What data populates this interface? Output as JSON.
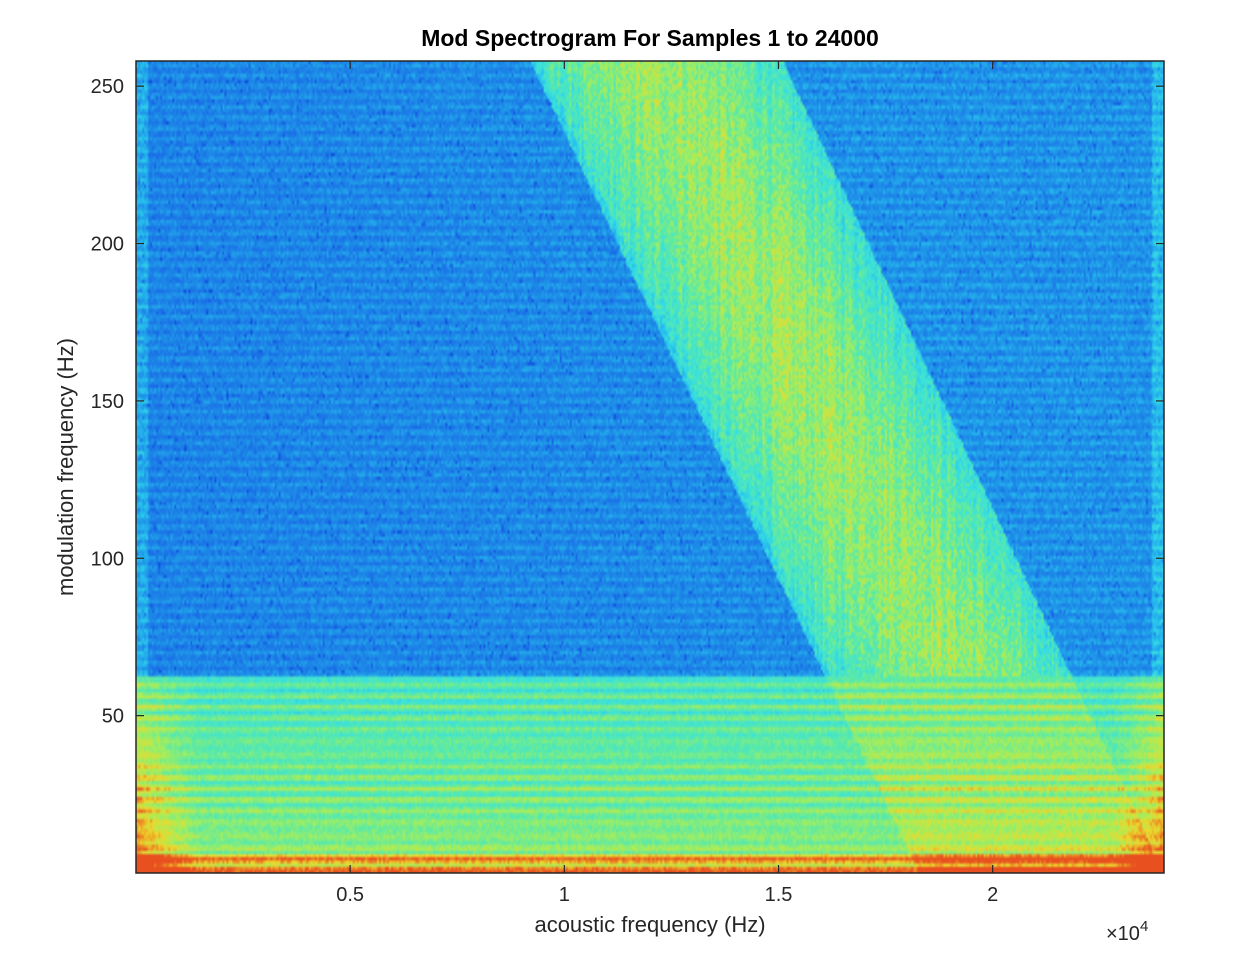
{
  "chart_data": {
    "type": "heatmap",
    "title": "Mod Spectrogram For Samples 1 to 24000",
    "xlabel": "acoustic frequency (Hz)",
    "ylabel": "modulation frequency (Hz)",
    "x_scale_multiplier": "×10",
    "x_scale_exponent": "4",
    "xlim": [
      0,
      24000
    ],
    "ylim": [
      0,
      258
    ],
    "xticks": [
      {
        "value": 5000,
        "label": "0.5"
      },
      {
        "value": 10000,
        "label": "1"
      },
      {
        "value": 15000,
        "label": "1.5"
      },
      {
        "value": 20000,
        "label": "2"
      }
    ],
    "yticks": [
      {
        "value": 50,
        "label": "50"
      },
      {
        "value": 100,
        "label": "100"
      },
      {
        "value": 150,
        "label": "150"
      },
      {
        "value": 200,
        "label": "200"
      },
      {
        "value": 250,
        "label": "250"
      }
    ],
    "colormap": "parula-like",
    "colors": {
      "low": "#0a3fd9",
      "background": "#1a78e6",
      "band": "#30d8f0",
      "mid": "#4ae8b0",
      "high": "#c8ee3c",
      "peak": "#f0c020",
      "max": "#e85020"
    },
    "regions": {
      "low_mod_band_top_hz": 62,
      "diagonal_band": {
        "left_edge_at_top_hz": 9200,
        "left_edge_at_bottom_hz": 18300,
        "right_edge_at_top_hz": 15100,
        "right_edge_at_bottom_hz": 24000
      }
    }
  }
}
